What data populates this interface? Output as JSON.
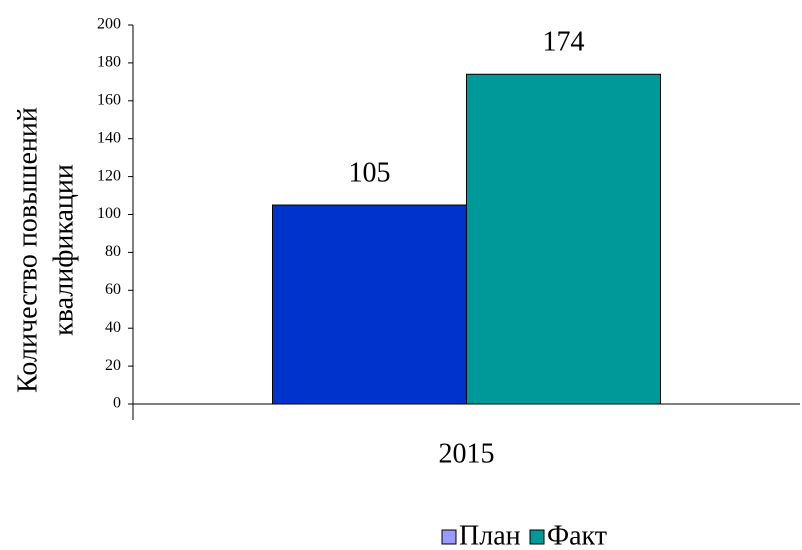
{
  "chart_data": {
    "type": "bar",
    "ylabel": [
      "Количество повышений",
      "квалификации"
    ],
    "categories": [
      "2015"
    ],
    "series": [
      {
        "name": "План",
        "color": "#0033cc",
        "legend_color": "#9999ff",
        "values": [
          105
        ]
      },
      {
        "name": "Факт",
        "color": "#009999",
        "legend_color": "#009999",
        "values": [
          174
        ]
      }
    ],
    "ylim": [
      0,
      200
    ],
    "yticks": [
      0,
      20,
      40,
      60,
      80,
      100,
      120,
      140,
      160,
      180,
      200
    ],
    "legend": "bottom"
  }
}
